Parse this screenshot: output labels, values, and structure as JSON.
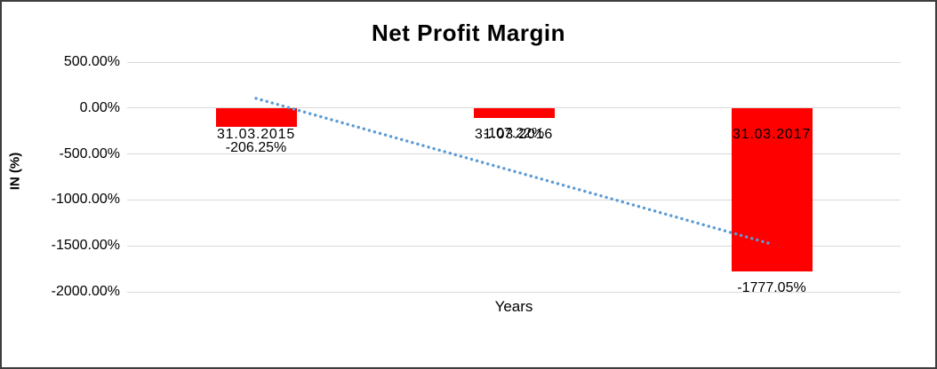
{
  "chart_data": {
    "type": "bar",
    "title": "Net Profit Margin",
    "xlabel": "Years",
    "ylabel": "IN (%)",
    "categories": [
      "31.03.2015",
      "31.03.2016",
      "31.03.2017"
    ],
    "series": [
      {
        "name": "Net Profit Margin",
        "values": [
          -206.25,
          -107.22,
          -1777.05
        ]
      }
    ],
    "data_labels": [
      "-206.25%",
      "-107.22%",
      "-1777.05%"
    ],
    "ylim": [
      -2000,
      500
    ],
    "ytick_step": 500,
    "yticks": [
      {
        "value": 500,
        "label": "500.00%"
      },
      {
        "value": 0,
        "label": "0.00%"
      },
      {
        "value": -500,
        "label": "-500.00%"
      },
      {
        "value": -1000,
        "label": "-1000.00%"
      },
      {
        "value": -1500,
        "label": "-1500.00%"
      },
      {
        "value": -2000,
        "label": "-2000.00%"
      }
    ],
    "grid": true,
    "legend": "none",
    "colors": {
      "bar": "#FF0000",
      "gridline": "#D9D9D9",
      "trendline": "#5B9BD5",
      "text": "#000000",
      "frame_border": "#3d3d3d"
    },
    "trendline": {
      "style": "dotted",
      "points": [
        {
          "category_index": 0,
          "value": 105
        },
        {
          "category_index": 2,
          "value": -1480
        }
      ]
    }
  }
}
